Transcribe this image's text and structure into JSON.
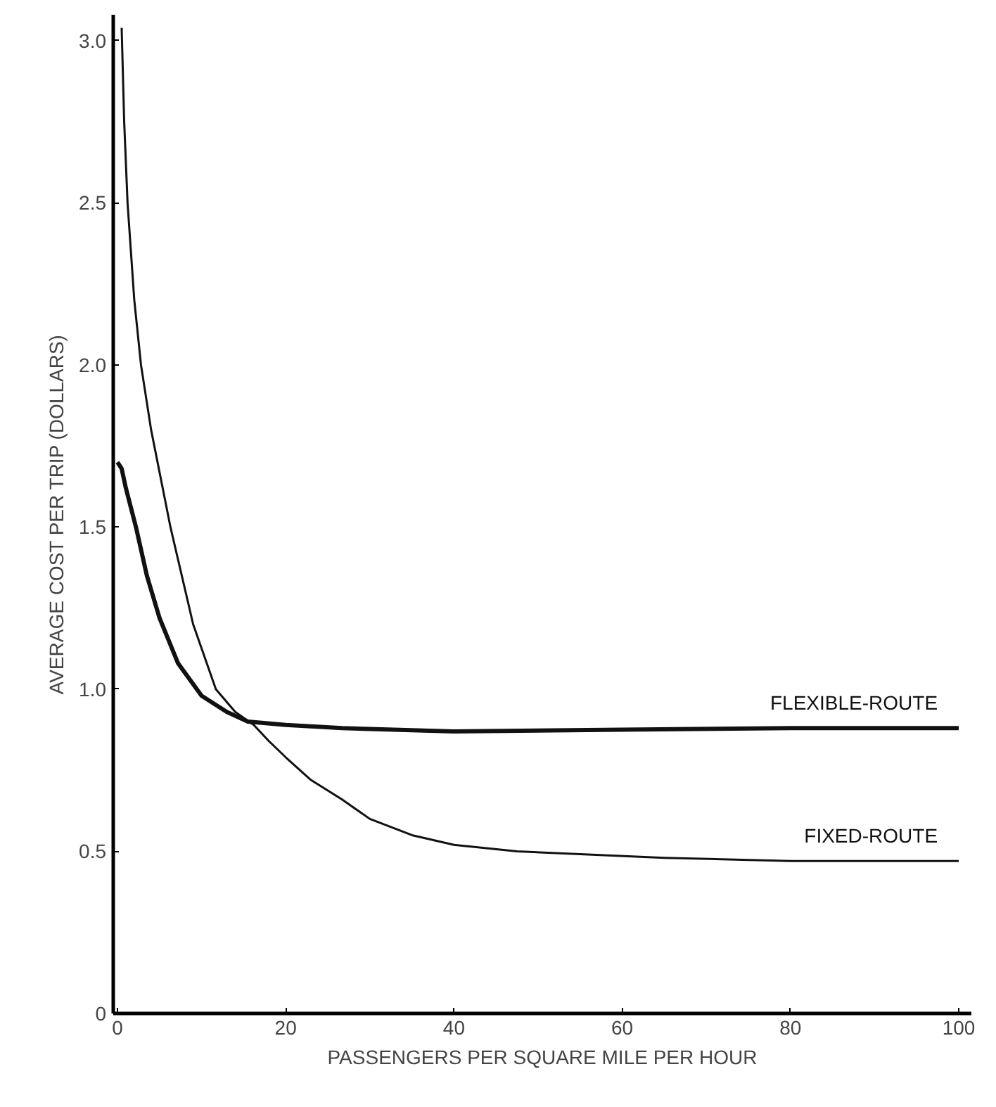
{
  "chart_data": {
    "type": "line",
    "xlabel": "PASSENGERS PER SQUARE MILE PER HOUR",
    "ylabel": "AVERAGE COST PER TRIP (DOLLARS)",
    "xlim": [
      -0.5,
      101.5
    ],
    "ylim": [
      0,
      3.08
    ],
    "xticks": [
      0,
      20,
      40,
      60,
      80,
      100
    ],
    "yticks": [
      0,
      0.5,
      {
        "value": 1.0,
        "label": "1.0"
      },
      1.5,
      {
        "value": 2.0,
        "label": "2.0"
      },
      2.5,
      {
        "value": 3.0,
        "label": "3.0"
      }
    ],
    "grid": false,
    "marker": "none",
    "line_style": "solid",
    "series": [
      {
        "name": "FLEXIBLE-ROUTE",
        "color": "#111111",
        "x": [
          0,
          0.5,
          1,
          2.2,
          3.5,
          5,
          7.2,
          10,
          13,
          15.5,
          20,
          26.7,
          40,
          60,
          80,
          100
        ],
        "values": [
          1.7,
          1.68,
          1.62,
          1.5,
          1.35,
          1.22,
          1.08,
          0.98,
          0.93,
          0.9,
          0.89,
          0.88,
          0.87,
          0.875,
          0.88,
          0.88
        ]
      },
      {
        "name": "FIXED-ROUTE",
        "color": "#111111",
        "x": [
          0.5,
          0.8,
          1.2,
          2,
          2.8,
          4,
          6.3,
          9,
          11.7,
          14,
          16.2,
          18,
          20,
          23,
          26.7,
          30,
          35,
          40,
          47.5,
          65,
          80,
          100
        ],
        "values": [
          3.04,
          2.75,
          2.5,
          2.2,
          2.0,
          1.8,
          1.5,
          1.2,
          1.0,
          0.93,
          0.89,
          0.84,
          0.79,
          0.72,
          0.66,
          0.6,
          0.55,
          0.52,
          0.5,
          0.48,
          0.47,
          0.47
        ]
      }
    ]
  }
}
